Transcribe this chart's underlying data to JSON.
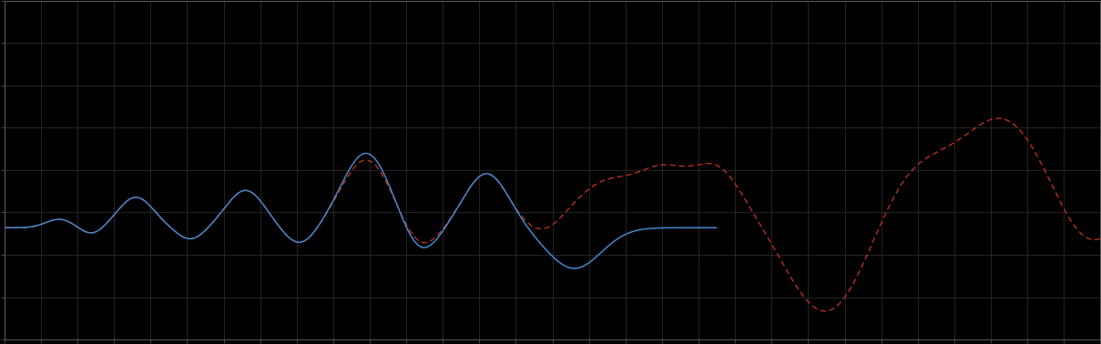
{
  "background_color": "#000000",
  "plot_bg_color": "#000000",
  "grid_color": "#333333",
  "blue_color": "#4488cc",
  "red_color": "#cc3322",
  "figsize": [
    12.09,
    3.78
  ],
  "dpi": 100,
  "xlim": [
    0,
    100
  ],
  "ylim": [
    0,
    10
  ],
  "n_x_gridlines": 30,
  "n_y_gridlines": 8,
  "spine_color": "#666666",
  "tick_color": "#666666"
}
